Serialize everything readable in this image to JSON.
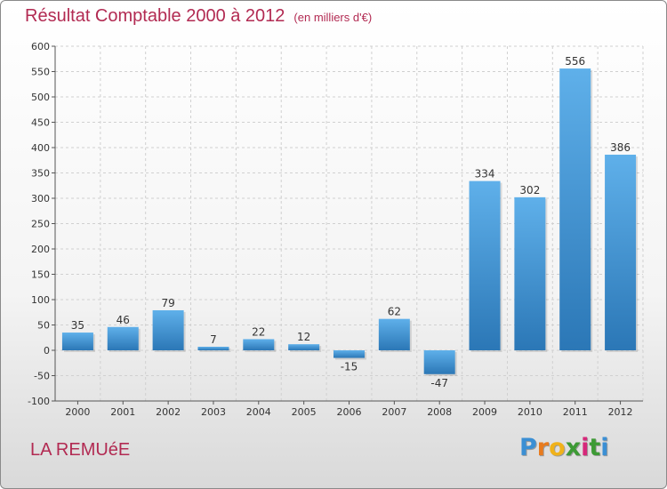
{
  "chart_data": {
    "type": "bar",
    "title": "Résultat Comptable 2000 à 2012",
    "subtitle": "(en milliers d'€)",
    "categories": [
      "2000",
      "2001",
      "2002",
      "2003",
      "2004",
      "2005",
      "2006",
      "2007",
      "2008",
      "2009",
      "2010",
      "2011",
      "2012"
    ],
    "values": [
      35,
      46,
      79,
      7,
      22,
      12,
      -15,
      62,
      -47,
      334,
      302,
      556,
      386
    ],
    "xlabel": "",
    "ylabel": "",
    "ylim": [
      -100,
      600
    ],
    "yticks": [
      -100,
      -50,
      0,
      50,
      100,
      150,
      200,
      250,
      300,
      350,
      400,
      450,
      500,
      550,
      600
    ],
    "grid": true
  },
  "commune": "LA REMUéE",
  "logo": {
    "letters": [
      "P",
      "r",
      "o",
      "x",
      "i",
      "t",
      "i"
    ],
    "colors": [
      "#3b8fd4",
      "#e87b1e",
      "#f0b21a",
      "#3d9a35",
      "#d6287a",
      "#3d9a35",
      "#3b8fd4"
    ]
  },
  "colors": {
    "bar_light": "#5fb0ea",
    "bar_dark": "#2b77b6",
    "title": "#b22a52"
  }
}
